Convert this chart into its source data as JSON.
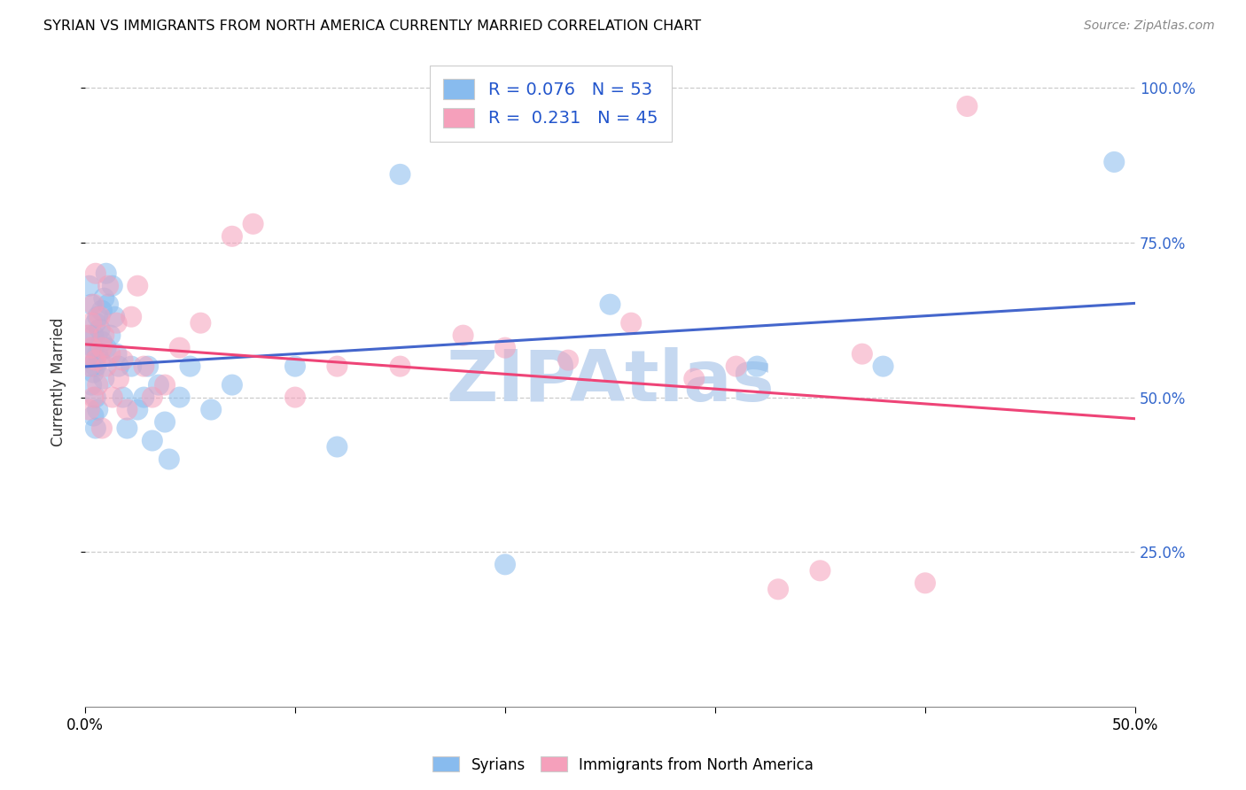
{
  "title": "SYRIAN VS IMMIGRANTS FROM NORTH AMERICA CURRENTLY MARRIED CORRELATION CHART",
  "source": "Source: ZipAtlas.com",
  "ylabel_label": "Currently Married",
  "legend_labels_bottom": [
    "Syrians",
    "Immigrants from North America"
  ],
  "blue_color": "#88bbee",
  "pink_color": "#f5a0bb",
  "blue_line_color": "#4466cc",
  "pink_line_color": "#ee4477",
  "watermark": "ZIPAtlas",
  "watermark_color": "#c5d8f0",
  "xlim": [
    0.0,
    0.5
  ],
  "ylim": [
    0.0,
    1.05
  ],
  "blue_scatter_x": [
    0.001,
    0.002,
    0.002,
    0.003,
    0.003,
    0.003,
    0.004,
    0.004,
    0.004,
    0.004,
    0.005,
    0.005,
    0.005,
    0.005,
    0.006,
    0.006,
    0.006,
    0.007,
    0.007,
    0.008,
    0.008,
    0.009,
    0.009,
    0.01,
    0.01,
    0.011,
    0.012,
    0.013,
    0.014,
    0.015,
    0.016,
    0.018,
    0.02,
    0.022,
    0.025,
    0.028,
    0.03,
    0.032,
    0.035,
    0.038,
    0.04,
    0.045,
    0.05,
    0.06,
    0.07,
    0.1,
    0.12,
    0.15,
    0.2,
    0.25,
    0.32,
    0.38,
    0.49
  ],
  "blue_scatter_y": [
    0.57,
    0.68,
    0.6,
    0.55,
    0.52,
    0.65,
    0.58,
    0.54,
    0.6,
    0.47,
    0.62,
    0.55,
    0.5,
    0.45,
    0.63,
    0.57,
    0.48,
    0.61,
    0.56,
    0.64,
    0.59,
    0.53,
    0.66,
    0.58,
    0.7,
    0.65,
    0.6,
    0.68,
    0.63,
    0.57,
    0.55,
    0.5,
    0.45,
    0.55,
    0.48,
    0.5,
    0.55,
    0.43,
    0.52,
    0.46,
    0.4,
    0.5,
    0.55,
    0.48,
    0.52,
    0.55,
    0.42,
    0.86,
    0.23,
    0.65,
    0.55,
    0.55,
    0.88
  ],
  "pink_scatter_x": [
    0.001,
    0.002,
    0.002,
    0.003,
    0.003,
    0.004,
    0.004,
    0.005,
    0.005,
    0.006,
    0.007,
    0.008,
    0.008,
    0.009,
    0.01,
    0.011,
    0.012,
    0.013,
    0.015,
    0.016,
    0.018,
    0.02,
    0.022,
    0.025,
    0.028,
    0.032,
    0.038,
    0.045,
    0.055,
    0.07,
    0.08,
    0.1,
    0.12,
    0.15,
    0.18,
    0.2,
    0.23,
    0.26,
    0.29,
    0.31,
    0.33,
    0.35,
    0.37,
    0.4,
    0.42
  ],
  "pink_scatter_y": [
    0.6,
    0.55,
    0.48,
    0.62,
    0.58,
    0.5,
    0.65,
    0.56,
    0.7,
    0.52,
    0.63,
    0.45,
    0.58,
    0.6,
    0.55,
    0.68,
    0.57,
    0.5,
    0.62,
    0.53,
    0.56,
    0.48,
    0.63,
    0.68,
    0.55,
    0.5,
    0.52,
    0.58,
    0.62,
    0.76,
    0.78,
    0.5,
    0.55,
    0.55,
    0.6,
    0.58,
    0.56,
    0.62,
    0.53,
    0.55,
    0.19,
    0.22,
    0.57,
    0.2,
    0.97
  ]
}
